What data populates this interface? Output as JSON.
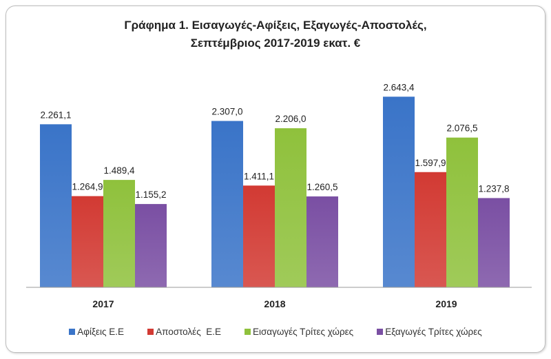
{
  "chart_data": {
    "type": "bar",
    "title_lines": [
      "Γράφημα 1. Εισαγωγές-Αφίξεις, Εξαγωγές-Αποστολές,",
      "Σεπτέμβριος 2017-2019 εκατ. €"
    ],
    "categories": [
      "2017",
      "2018",
      "2019"
    ],
    "series": [
      {
        "name": "Αφίξεις Ε.Ε",
        "color": "#3a74c8",
        "values": [
          2261.1,
          2307.0,
          2643.4
        ],
        "labels": [
          "2.261,1",
          "2.307,0",
          "2.643,4"
        ]
      },
      {
        "name": "Αποστολές  Ε.Ε",
        "color": "#d23a33",
        "values": [
          1264.9,
          1411.1,
          1597.9
        ],
        "labels": [
          "1.264,9",
          "1.411,1",
          "1.597,9"
        ]
      },
      {
        "name": "Εισαγωγές Τρίτες χώρες",
        "color": "#8fc13c",
        "values": [
          1489.4,
          2206.0,
          2076.5
        ],
        "labels": [
          "1.489,4",
          "2.206,0",
          "2.076,5"
        ]
      },
      {
        "name": "Εξαγωγές Τρίτες χώρες",
        "color": "#7a4fa3",
        "values": [
          1155.2,
          1260.5,
          1237.8
        ],
        "labels": [
          "1.155,2",
          "1.260,5",
          "1.237,8"
        ]
      }
    ],
    "ylim": [
      0,
      3000
    ],
    "grid": false,
    "legend": "bottom",
    "xlabel": "",
    "ylabel": ""
  }
}
